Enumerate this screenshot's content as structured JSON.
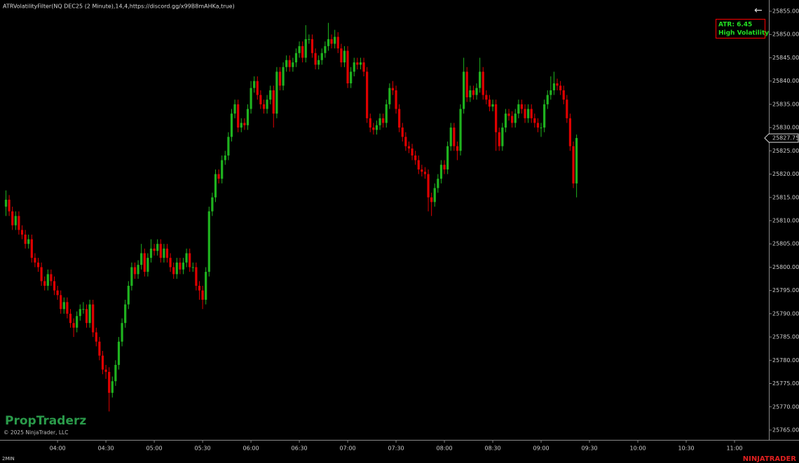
{
  "chart_data": {
    "type": "candlestick",
    "title": "ATRVolatilityFilter(NQ DEC25 (2 Minute),14,4,https://discord.gg/x99B8mAHKa,true)",
    "atr_label": "ATR: 6.45",
    "volatility_label": "High Volatility",
    "watermark": "PropTraderz",
    "copyright": "© 2025 NinjaTrader, LLC",
    "interval": "2MIN",
    "brand": "NINJATRADER",
    "up_color": "#1fb31f",
    "down_color": "#e00000",
    "xlim": [
      204.3,
      681.3
    ],
    "ylim": [
      25762.89,
      25857.41
    ],
    "xticks": [
      {
        "value": 240,
        "label": "04:00"
      },
      {
        "value": 270,
        "label": "04:30"
      },
      {
        "value": 300,
        "label": "05:00"
      },
      {
        "value": 330,
        "label": "05:30"
      },
      {
        "value": 360,
        "label": "06:00"
      },
      {
        "value": 390,
        "label": "06:30"
      },
      {
        "value": 420,
        "label": "07:00"
      },
      {
        "value": 450,
        "label": "07:30"
      },
      {
        "value": 480,
        "label": "08:00"
      },
      {
        "value": 510,
        "label": "08:30"
      },
      {
        "value": 540,
        "label": "09:00"
      },
      {
        "value": 570,
        "label": "09:30"
      },
      {
        "value": 600,
        "label": "10:00"
      },
      {
        "value": 630,
        "label": "10:30"
      },
      {
        "value": 660,
        "label": "11:00"
      }
    ],
    "yticks": [
      {
        "value": 25765,
        "label": "25765.00"
      },
      {
        "value": 25770,
        "label": "25770.00"
      },
      {
        "value": 25775,
        "label": "25775.00"
      },
      {
        "value": 25780,
        "label": "25780.00"
      },
      {
        "value": 25785,
        "label": "25785.00"
      },
      {
        "value": 25790,
        "label": "25790.00"
      },
      {
        "value": 25795,
        "label": "25795.00"
      },
      {
        "value": 25800,
        "label": "25800.00"
      },
      {
        "value": 25805,
        "label": "25805.00"
      },
      {
        "value": 25810,
        "label": "25810.00"
      },
      {
        "value": 25815,
        "label": "25815.00"
      },
      {
        "value": 25820,
        "label": "25820.00"
      },
      {
        "value": 25825,
        "label": "25825.00"
      },
      {
        "value": 25830,
        "label": "25830.00"
      },
      {
        "value": 25835,
        "label": "25835.00"
      },
      {
        "value": 25840,
        "label": "25840.00"
      },
      {
        "value": 25845,
        "label": "25845.00"
      },
      {
        "value": 25850,
        "label": "25850.00"
      },
      {
        "value": 25855,
        "label": "25855.00"
      }
    ],
    "x": [
      208,
      210,
      212,
      214,
      216,
      218,
      220,
      222,
      224,
      226,
      228,
      230,
      232,
      234,
      236,
      238,
      240,
      242,
      244,
      246,
      248,
      250,
      252,
      254,
      256,
      258,
      260,
      262,
      264,
      266,
      268,
      270,
      272,
      274,
      276,
      278,
      280,
      282,
      284,
      286,
      288,
      290,
      292,
      294,
      296,
      298,
      300,
      302,
      304,
      306,
      308,
      310,
      312,
      314,
      316,
      318,
      320,
      322,
      324,
      326,
      328,
      330,
      332,
      334,
      336,
      338,
      340,
      342,
      344,
      346,
      348,
      350,
      352,
      354,
      356,
      358,
      360,
      362,
      364,
      366,
      368,
      370,
      372,
      374,
      376,
      378,
      380,
      382,
      384,
      386,
      388,
      390,
      392,
      394,
      396,
      398,
      400,
      402,
      404,
      406,
      408,
      410,
      412,
      414,
      416,
      418,
      420,
      422,
      424,
      426,
      428,
      430,
      432,
      434,
      436,
      438,
      440,
      442,
      444,
      446,
      448,
      450,
      452,
      454,
      456,
      458,
      460,
      462,
      464,
      466,
      468,
      470,
      472,
      474,
      476,
      478,
      480,
      482,
      484,
      486,
      488,
      490,
      492,
      494,
      496,
      498,
      500,
      502,
      504,
      506,
      508,
      510,
      512,
      514,
      516,
      518,
      520,
      522,
      524,
      526,
      528,
      530,
      532,
      534,
      536,
      538,
      540,
      542,
      544,
      546,
      548,
      550,
      552,
      554,
      556,
      558,
      560,
      562
    ],
    "open": [
      25813,
      25814.5,
      25812,
      25809,
      25811,
      25808,
      25807,
      25805,
      25806,
      25802,
      25801,
      25800,
      25797,
      25796,
      25798.5,
      25797,
      25795,
      25794,
      25791,
      25792.5,
      25790,
      25788,
      25787,
      25789.5,
      25791,
      25791,
      25788,
      25792,
      25786,
      25784,
      25781,
      25778,
      25777.5,
      25773,
      25775.5,
      25779,
      25784,
      25788,
      25792,
      25796,
      25800,
      25798.5,
      25800.5,
      25803,
      25799,
      25802,
      25804,
      25803.5,
      25805,
      25802,
      25804,
      25802,
      25800,
      25798.5,
      25801,
      25799.5,
      25801,
      25803,
      25800,
      25800,
      25796,
      25795,
      25793,
      25799,
      25812,
      25815,
      25820,
      25819,
      25823,
      25824,
      25828,
      25833,
      25835,
      25830,
      25831,
      25830.5,
      25834,
      25838.5,
      25840,
      25837,
      25835,
      25834,
      25836,
      25838,
      25833,
      25842,
      25839,
      25843,
      25844.5,
      25843,
      25844,
      25846,
      25847.5,
      25845,
      25849,
      25849,
      25846,
      25843.5,
      25844.5,
      25846,
      25847.5,
      25849,
      25848,
      25849.5,
      25847,
      25844,
      25846.5,
      25839.5,
      25842,
      25844,
      25843.5,
      25844,
      25842,
      25832,
      25830,
      25829.5,
      25830.5,
      25832,
      25831,
      25835,
      25838.5,
      25838,
      25834,
      25830,
      25828,
      25826,
      25825.5,
      25824,
      25823,
      25821,
      25820.5,
      25820,
      25815,
      25814,
      25817,
      25819,
      25822,
      25821,
      25826,
      25830,
      25826,
      25825,
      25834,
      25842,
      25836.5,
      25838,
      25837,
      25838.5,
      25842,
      25837,
      25836,
      25834.5,
      25835,
      25829,
      25826,
      25830,
      25833,
      25832.5,
      25831,
      25833,
      25835,
      25834,
      25832,
      25834,
      25832,
      25831,
      25830,
      25830,
      25835,
      25837,
      25838,
      25839.5,
      25839,
      25838,
      25836,
      25832,
      25826,
      25818
    ],
    "high": [
      25816.5,
      25815.5,
      25813,
      25812,
      25812,
      25809,
      25808,
      25807,
      25807,
      25803,
      25802,
      25801,
      25798,
      25799.5,
      25799.5,
      25798,
      25796,
      25795,
      25793.5,
      25793.5,
      25791,
      25789,
      25790.5,
      25792,
      25792.5,
      25792,
      25793,
      25793,
      25787,
      25785,
      25782,
      25779,
      25778.5,
      25776.5,
      25780,
      25785,
      25789,
      25793,
      25797,
      25801,
      25801,
      25801.5,
      25805,
      25804,
      25803,
      25806,
      25805,
      25806,
      25806,
      25805,
      25805,
      25803,
      25801,
      25802,
      25802,
      25802,
      25804,
      25804,
      25801,
      25801,
      25797,
      25796,
      25800,
      25813,
      25816,
      25821,
      25821,
      25824,
      25825,
      25829,
      25834,
      25836,
      25836,
      25832,
      25832,
      25835,
      25840,
      25841,
      25841,
      25838,
      25836,
      25837,
      25839,
      25839,
      25843,
      25843,
      25844,
      25845.5,
      25845.5,
      25845,
      25847,
      25848.5,
      25848.5,
      25852,
      25850,
      25850,
      25847,
      25845.5,
      25847,
      25848.5,
      25852.5,
      25850,
      25851,
      25850.5,
      25848,
      25847.5,
      25847.5,
      25843,
      25845,
      25845,
      25845,
      25845,
      25843,
      25833,
      25831,
      25831.5,
      25833,
      25833,
      25836,
      25839.5,
      25840,
      25839,
      25835,
      25831,
      25829,
      25827,
      25826.5,
      25825,
      25824,
      25822,
      25821.5,
      25821,
      25816,
      25818,
      25820,
      25823,
      25823,
      25827,
      25831,
      25831,
      25827,
      25835,
      25845,
      25843,
      25839,
      25839,
      25839.5,
      25845,
      25843,
      25838,
      25837,
      25836,
      25836,
      25830,
      25831,
      25834,
      25834,
      25833.5,
      25834,
      25836,
      25836,
      25835,
      25835,
      25835,
      25833,
      25832,
      25831,
      25836,
      25838,
      25841,
      25842,
      25840.5,
      25840,
      25839,
      25837,
      25833,
      25827,
      25828.5
    ],
    "low": [
      25811,
      25811,
      25808,
      25808,
      25807,
      25806,
      25804,
      25804,
      25801,
      25800,
      25799,
      25796,
      25795,
      25795,
      25796,
      25794,
      25793,
      25790,
      25790,
      25789,
      25787,
      25785,
      25786,
      25788.5,
      25790,
      25787,
      25787,
      25785,
      25783,
      25780,
      25777,
      25776,
      25769,
      25772,
      25774.5,
      25778,
      25783,
      25787,
      25791,
      25795,
      25797.5,
      25797.5,
      25799.5,
      25798,
      25798,
      25801,
      25802.5,
      25802.5,
      25801,
      25801,
      25801,
      25799,
      25797.5,
      25797.5,
      25798.5,
      25798.5,
      25800,
      25799,
      25799,
      25795,
      25793,
      25791,
      25792,
      25798,
      25811,
      25814,
      25818,
      25818,
      25822,
      25823,
      25827,
      25832,
      25829,
      25829,
      25829.5,
      25829.5,
      25833,
      25837.5,
      25836,
      25834,
      25833,
      25833,
      25835,
      25830,
      25832,
      25838,
      25838,
      25842,
      25842,
      25842,
      25843,
      25845,
      25844,
      25844,
      25848,
      25845,
      25842.5,
      25842.5,
      25843.5,
      25845,
      25846.5,
      25847,
      25847,
      25846,
      25843,
      25843,
      25838.5,
      25838.5,
      25841,
      25842.5,
      25842.5,
      25841,
      25831,
      25829,
      25828.5,
      25828.5,
      25829.5,
      25830,
      25830,
      25834,
      25837,
      25833,
      25829,
      25827,
      25825,
      25824.5,
      25823,
      25822,
      25820,
      25819.5,
      25819,
      25812,
      25811,
      25813,
      25816,
      25818,
      25820,
      25820,
      25825,
      25825,
      25823,
      25824,
      25833,
      25835.5,
      25835.5,
      25836,
      25836,
      25837.5,
      25836,
      25835,
      25833.5,
      25833.5,
      25825,
      25825,
      25825,
      25829,
      25831.5,
      25830,
      25830,
      25832,
      25833,
      25831,
      25831,
      25831,
      25830,
      25829,
      25828,
      25829,
      25834,
      25836,
      25837,
      25838,
      25837,
      25835,
      25831,
      25825,
      25817,
      25815
    ],
    "close": [
      25814.5,
      25812,
      25809,
      25811,
      25808,
      25807,
      25805,
      25806,
      25802,
      25801,
      25800,
      25797,
      25796,
      25798.5,
      25797,
      25795,
      25794,
      25791,
      25792.5,
      25790,
      25788,
      25787,
      25789.5,
      25791,
      25791,
      25788,
      25792,
      25786,
      25784,
      25781,
      25778,
      25777.5,
      25773,
      25775.5,
      25779,
      25784,
      25788,
      25792,
      25796,
      25800,
      25798.5,
      25800.5,
      25803,
      25799,
      25802,
      25804,
      25803.5,
      25805,
      25802,
      25804,
      25802,
      25800,
      25798.5,
      25801,
      25799.5,
      25801,
      25803,
      25800,
      25800,
      25796,
      25795,
      25793,
      25799,
      25812,
      25815,
      25820,
      25819,
      25823,
      25824,
      25828,
      25833,
      25835,
      25830,
      25831,
      25830.5,
      25834,
      25838.5,
      25840,
      25837,
      25835,
      25834,
      25836,
      25838,
      25833,
      25842,
      25839,
      25843,
      25844.5,
      25843,
      25844,
      25846,
      25847.5,
      25845,
      25849,
      25849,
      25846,
      25843.5,
      25844.5,
      25846,
      25847.5,
      25849,
      25848,
      25849.5,
      25847,
      25844,
      25846.5,
      25839.5,
      25842,
      25844,
      25843.5,
      25844,
      25842,
      25832,
      25830,
      25829.5,
      25830.5,
      25832,
      25831,
      25835,
      25838.5,
      25838,
      25834,
      25830,
      25828,
      25826,
      25825.5,
      25824,
      25823,
      25821,
      25820.5,
      25820,
      25815,
      25814,
      25817,
      25819,
      25822,
      25821,
      25826,
      25830,
      25826,
      25825,
      25834,
      25842,
      25836.5,
      25838,
      25837,
      25838.5,
      25842,
      25837,
      25836,
      25834.5,
      25835,
      25829,
      25826,
      25830,
      25833,
      25832.5,
      25831,
      25833,
      25835,
      25834,
      25832,
      25834,
      25832,
      25831,
      25830,
      25830,
      25835,
      25837,
      25838,
      25839.5,
      25839,
      25838,
      25836,
      25832,
      25826,
      25818,
      25827.75
    ]
  }
}
